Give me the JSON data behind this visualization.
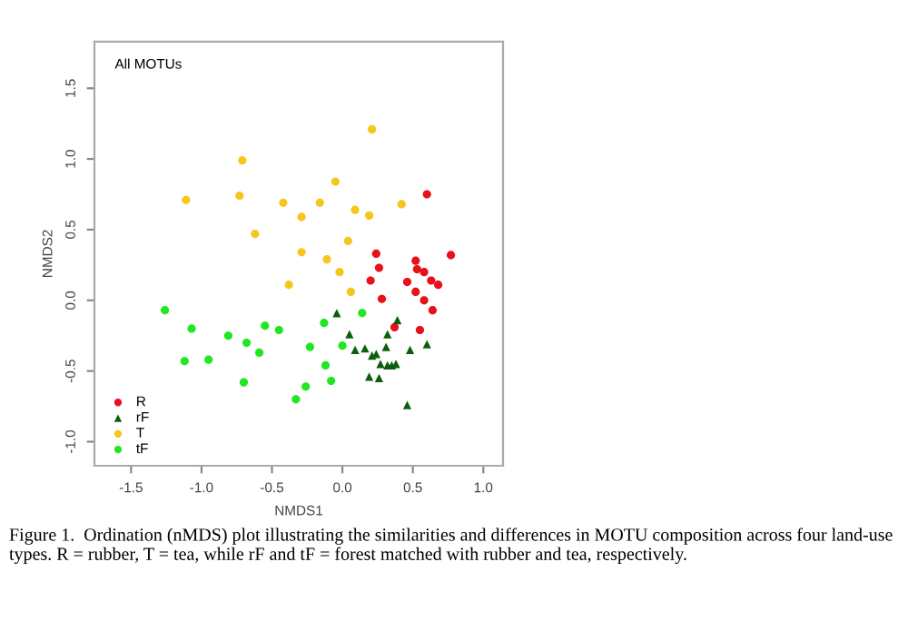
{
  "chart_data": {
    "type": "scatter",
    "title": "All MOTUs",
    "xlabel": "NMDS1",
    "ylabel": "NMDS2",
    "xlim": [
      -1.76,
      1.14
    ],
    "ylim": [
      -1.17,
      1.83
    ],
    "xticks": [
      -1.5,
      {
        "value": -1,
        "label": "-1.0"
      },
      -0.5,
      {
        "value": 0,
        "label": "0.0"
      },
      0.5,
      {
        "value": 1,
        "label": "1.0"
      }
    ],
    "yticks": [
      {
        "value": -1,
        "label": "-1.0"
      },
      -0.5,
      {
        "value": 0,
        "label": "0.0"
      },
      0.5,
      {
        "value": 1,
        "label": "1.0"
      },
      1.5
    ],
    "grid": false,
    "legend": "bottom left",
    "annotations": [
      "Figure 1.  Ordination (nMDS) plot illustrating the similarities and differences in MOTU composition across four land-use types. R = rubber, T = tea, while rF and tF = forest matched with rubber and tea, respectively."
    ],
    "series": [
      {
        "name": "R",
        "color": "#e8101a",
        "marker": "circle",
        "x": [
          0.6,
          0.77,
          0.24,
          0.26,
          0.2,
          0.28,
          0.52,
          0.53,
          0.58,
          0.46,
          0.63,
          0.68,
          0.52,
          0.58,
          0.64,
          0.55,
          0.37
        ],
        "values": [
          0.75,
          0.32,
          0.33,
          0.23,
          0.14,
          0.01,
          0.28,
          0.22,
          0.2,
          0.13,
          0.14,
          0.11,
          0.06,
          0.0,
          -0.07,
          -0.21,
          -0.19
        ]
      },
      {
        "name": "rF",
        "color": "#0b5e0b",
        "marker": "triangle",
        "x": [
          -0.04,
          0.05,
          0.09,
          0.16,
          0.32,
          0.39,
          0.31,
          0.21,
          0.24,
          0.27,
          0.32,
          0.35,
          0.38,
          0.48,
          0.6,
          0.19,
          0.26,
          0.46
        ],
        "values": [
          -0.09,
          -0.24,
          -0.35,
          -0.34,
          -0.24,
          -0.14,
          -0.33,
          -0.39,
          -0.38,
          -0.45,
          -0.46,
          -0.46,
          -0.45,
          -0.35,
          -0.31,
          -0.54,
          -0.55,
          -0.74
        ]
      },
      {
        "name": "T",
        "color": "#f7c51e",
        "marker": "circle",
        "x": [
          -1.11,
          -0.71,
          -0.73,
          -0.62,
          -0.42,
          -0.29,
          -0.29,
          -0.38,
          -0.16,
          -0.05,
          -0.11,
          0.09,
          0.04,
          -0.02,
          0.06,
          0.19,
          0.21,
          0.42
        ],
        "values": [
          0.71,
          0.99,
          0.74,
          0.47,
          0.69,
          0.59,
          0.34,
          0.11,
          0.69,
          0.84,
          0.29,
          0.64,
          0.42,
          0.2,
          0.06,
          0.6,
          1.21,
          0.68
        ]
      },
      {
        "name": "tF",
        "color": "#22e622",
        "marker": "circle",
        "x": [
          -1.26,
          -1.07,
          -1.12,
          -0.95,
          -0.81,
          -0.68,
          -0.59,
          -0.55,
          -0.45,
          -0.7,
          -0.33,
          -0.26,
          -0.23,
          -0.13,
          -0.12,
          -0.08,
          0.0,
          0.14
        ],
        "values": [
          -0.07,
          -0.2,
          -0.43,
          -0.42,
          -0.25,
          -0.3,
          -0.37,
          -0.18,
          -0.21,
          -0.58,
          -0.7,
          -0.61,
          -0.33,
          -0.16,
          -0.46,
          -0.57,
          -0.32,
          -0.09
        ]
      }
    ]
  }
}
